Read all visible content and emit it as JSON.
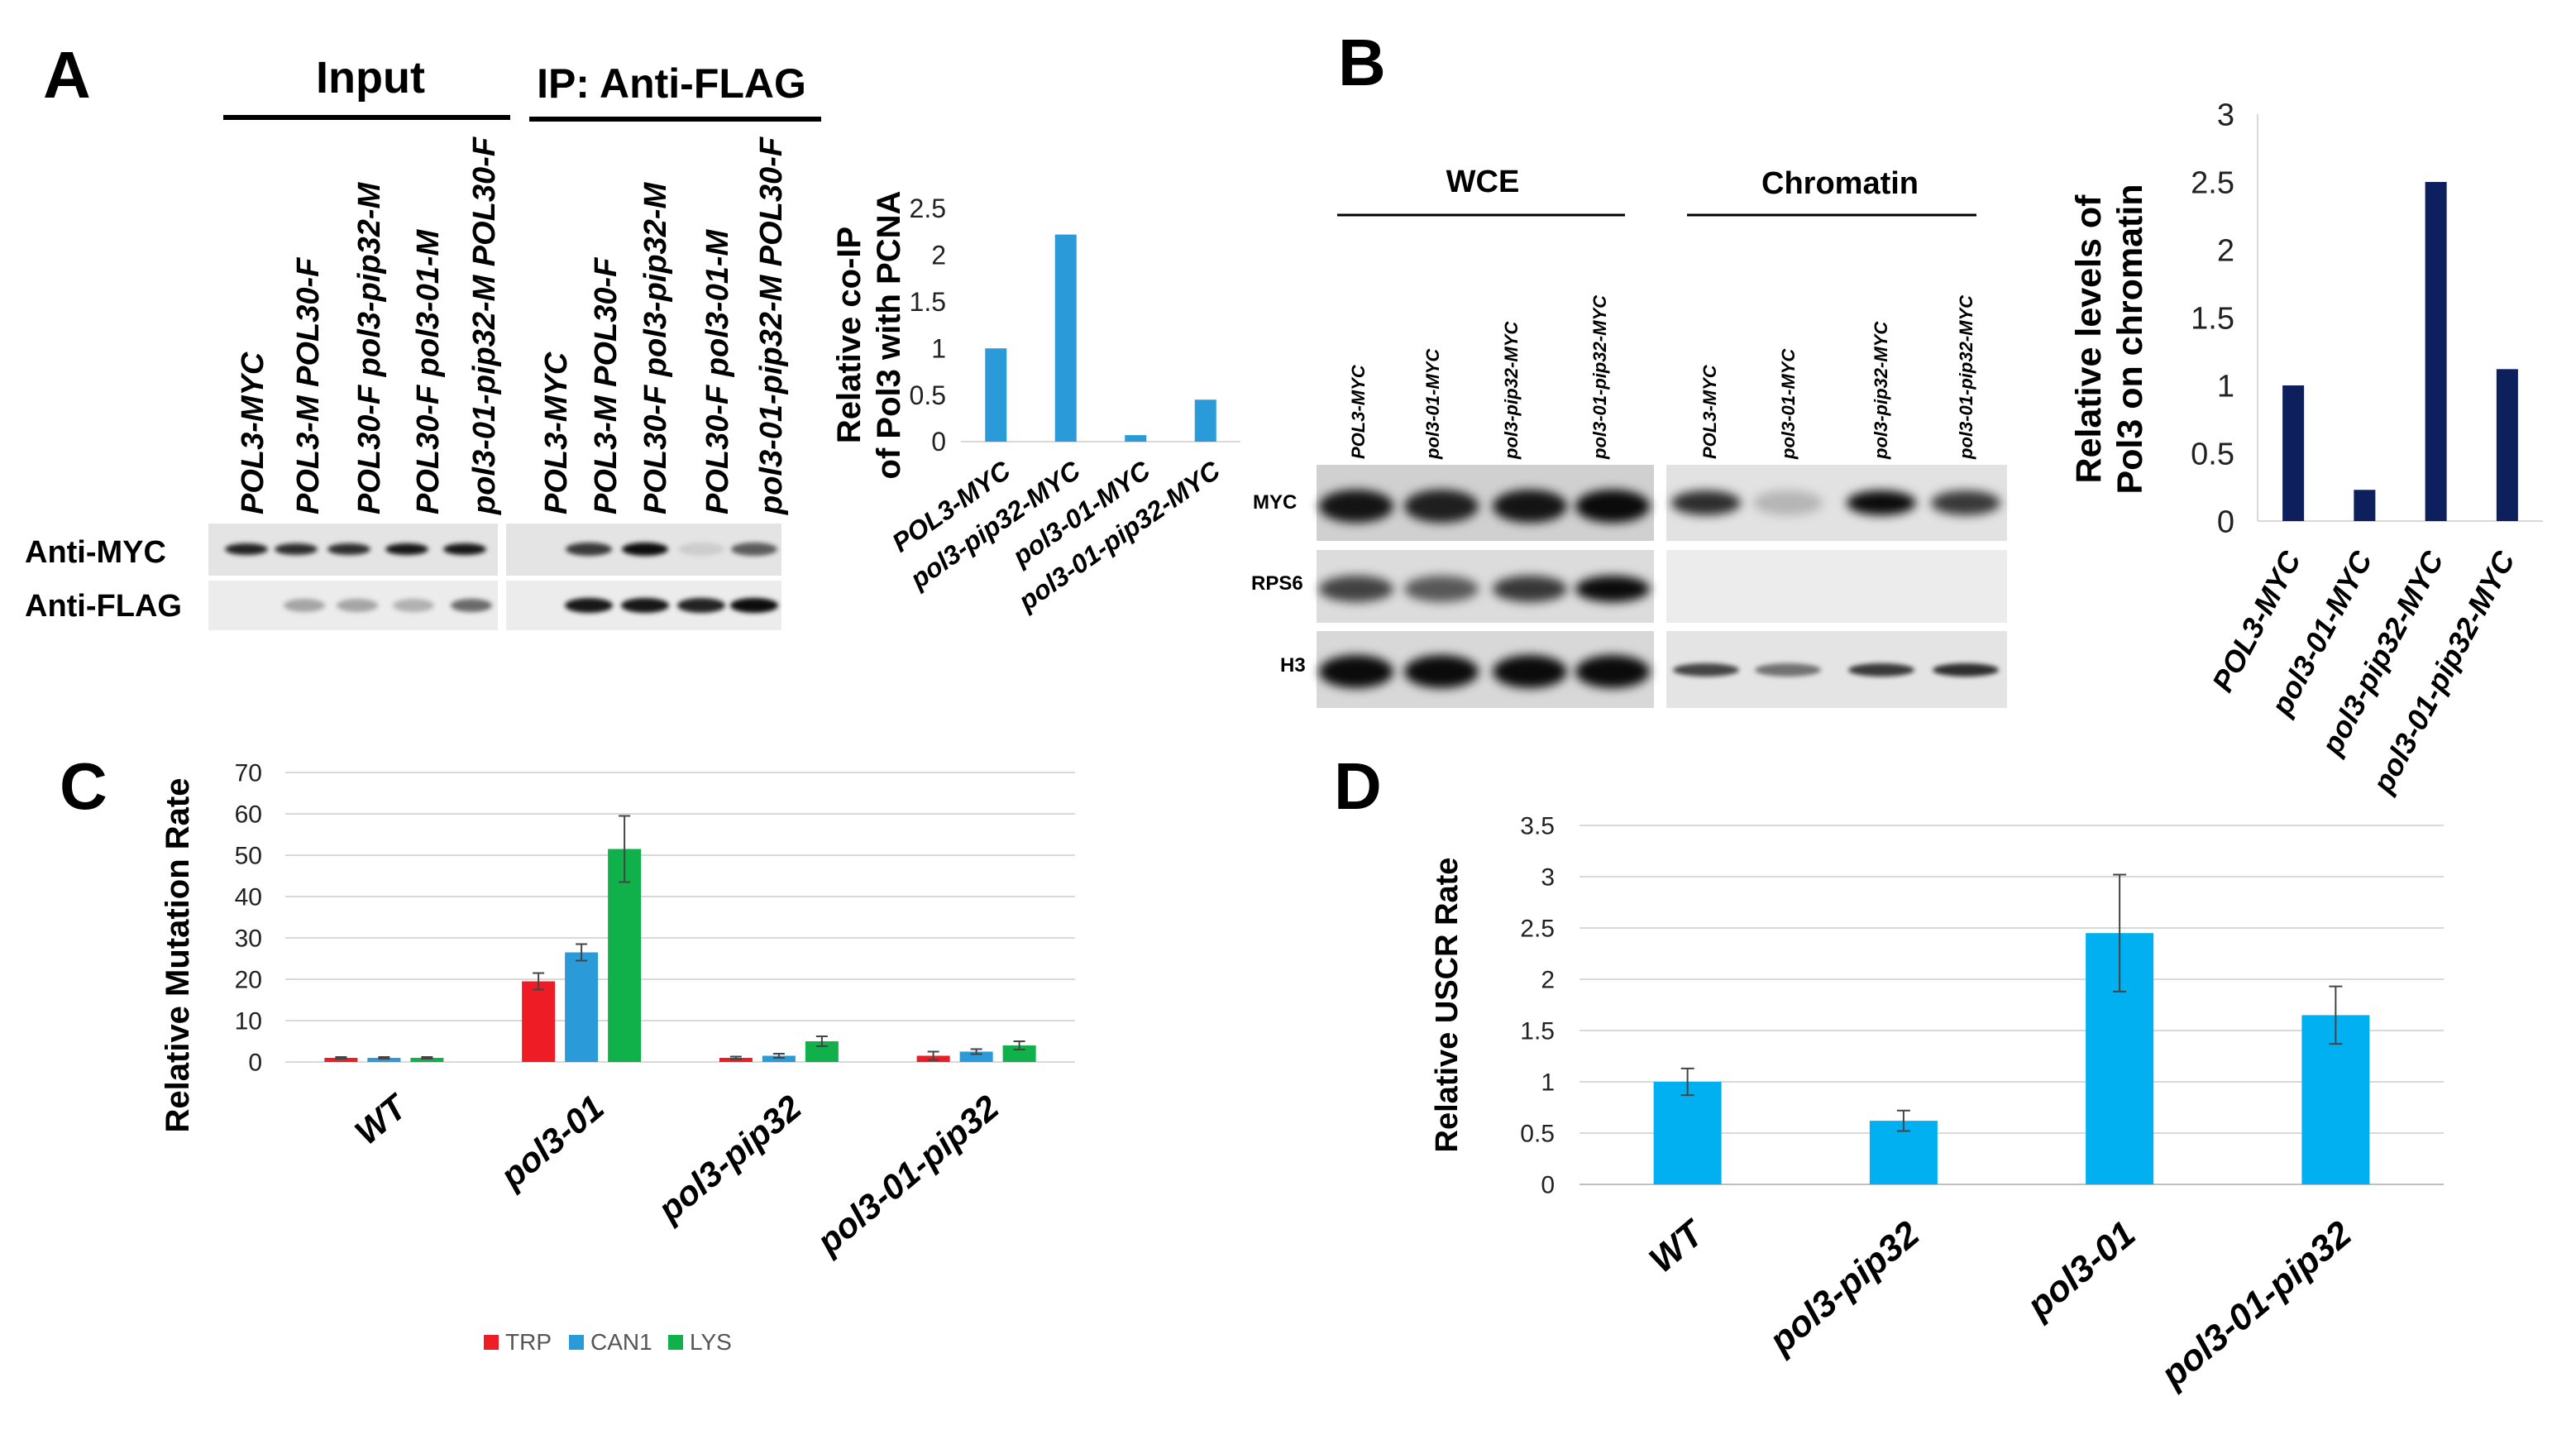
{
  "panels": {
    "A": {
      "letter": "A",
      "input_header": "Input",
      "ip_header": "IP: Anti-FLAG",
      "lane_labels_input": [
        "POL3-MYC",
        "POL3-M POL30-F",
        "POL30-F pol3-pip32-M",
        "POL30-F pol3-01-M",
        "pol3-01-pip32-M  POL30-F"
      ],
      "lane_labels_ip": [
        "POL3-MYC",
        "POL3-M POL30-F",
        "POL30-F pol3-pip32-M",
        "POL30-F pol3-01-M",
        "pol3-01-pip32-M  POL30-F"
      ],
      "blot_rows": [
        "Anti-MYC",
        "Anti-FLAG"
      ],
      "band_intensity": {
        "input_myc": [
          0.85,
          0.8,
          0.8,
          0.9,
          0.9
        ],
        "input_flag": [
          0.0,
          0.3,
          0.3,
          0.25,
          0.55
        ],
        "ip_myc": [
          0.0,
          0.75,
          0.95,
          0.1,
          0.6
        ],
        "ip_flag": [
          0.0,
          0.9,
          0.9,
          0.85,
          0.95
        ]
      }
    },
    "B": {
      "letter": "B",
      "wce_header": "WCE",
      "chromatin_header": "Chromatin",
      "lane_labels_wce": [
        "POL3-MYC",
        "pol3-01-MYC",
        "pol3-pip32-MYC",
        "pol3-01-pip32-MYC"
      ],
      "lane_labels_chromatin": [
        "POL3-MYC",
        "pol3-01-MYC",
        "pol3-pip32-MYC",
        "pol3-01-pip32-MYC"
      ],
      "blot_rows": [
        "MYC",
        "RPS6",
        "H3"
      ],
      "band_intensity": {
        "wce_myc": [
          0.9,
          0.85,
          0.9,
          0.95
        ],
        "wce_rps6": [
          0.7,
          0.6,
          0.75,
          0.95
        ],
        "wce_h3": [
          0.95,
          0.95,
          0.95,
          0.95
        ],
        "chromatin_myc": [
          0.8,
          0.2,
          0.95,
          0.75
        ],
        "chromatin_rps6": [
          0.0,
          0.0,
          0.0,
          0.0
        ],
        "chromatin_h3": [
          0.7,
          0.5,
          0.75,
          0.8
        ]
      }
    },
    "C": {
      "letter": "C"
    },
    "D": {
      "letter": "D"
    }
  },
  "chart_data": [
    {
      "id": "coip",
      "type": "bar",
      "ylabel_lines": [
        "Relative co-IP",
        "of Pol3 with PCNA"
      ],
      "categories": [
        "POL3-MYC",
        "pol3-pip32-MYC",
        "pol3-01-MYC",
        "pol3-01-pip32-MYC"
      ],
      "values": [
        1.0,
        2.22,
        0.07,
        0.45
      ],
      "ylim": [
        0,
        2.5
      ],
      "yticks": [
        "0",
        "0.5",
        "1",
        "1.5",
        "2",
        "2.5"
      ],
      "color": "#2a9bd8"
    },
    {
      "id": "chromatin",
      "type": "bar",
      "ylabel_lines": [
        "Relative levels of",
        "Pol3 on chromatin"
      ],
      "categories": [
        "POL3-MYC",
        "pol3-01-MYC",
        "pol3-pip32-MYC",
        "pol3-01-pip32-MYC"
      ],
      "values": [
        1.0,
        0.23,
        2.5,
        1.12
      ],
      "ylim": [
        0,
        3
      ],
      "yticks": [
        "0",
        "0.5",
        "1",
        "1.5",
        "2",
        "2.5",
        "3"
      ],
      "color": "#0d1f5c"
    },
    {
      "id": "mutation",
      "type": "bar",
      "ylabel": "Relative Mutation Rate",
      "categories": [
        "WT",
        "pol3-01",
        "pol3-pip32",
        "pol3-01-pip32"
      ],
      "series": [
        {
          "name": "TRP",
          "values": [
            1,
            19.5,
            1,
            1.5
          ],
          "errors": [
            0.2,
            2,
            0.3,
            1
          ],
          "color": "#ee1c24"
        },
        {
          "name": "CAN1",
          "values": [
            1,
            26.5,
            1.5,
            2.5
          ],
          "errors": [
            0.2,
            2,
            0.5,
            0.6
          ],
          "color": "#2a9bd8"
        },
        {
          "name": "LYS",
          "values": [
            1,
            51.5,
            5,
            4
          ],
          "errors": [
            0.2,
            8,
            1.2,
            1
          ],
          "color": "#10b14b"
        }
      ],
      "ylim": [
        0,
        70
      ],
      "yticks": [
        "0",
        "10",
        "20",
        "30",
        "40",
        "50",
        "60",
        "70"
      ],
      "legend_position": "bottom",
      "grid": true
    },
    {
      "id": "uscr",
      "type": "bar",
      "ylabel": "Relative  USCR Rate",
      "categories": [
        "WT",
        "pol3-pip32",
        "pol3-01",
        "pol3-01-pip32"
      ],
      "values": [
        1.0,
        0.62,
        2.45,
        1.65
      ],
      "errors": [
        0.13,
        0.1,
        0.57,
        0.28
      ],
      "ylim": [
        0,
        3.5
      ],
      "yticks": [
        "0",
        "0.5",
        "1",
        "1.5",
        "2",
        "2.5",
        "3",
        "3.5"
      ],
      "color": "#00b0f0",
      "grid": true
    }
  ]
}
